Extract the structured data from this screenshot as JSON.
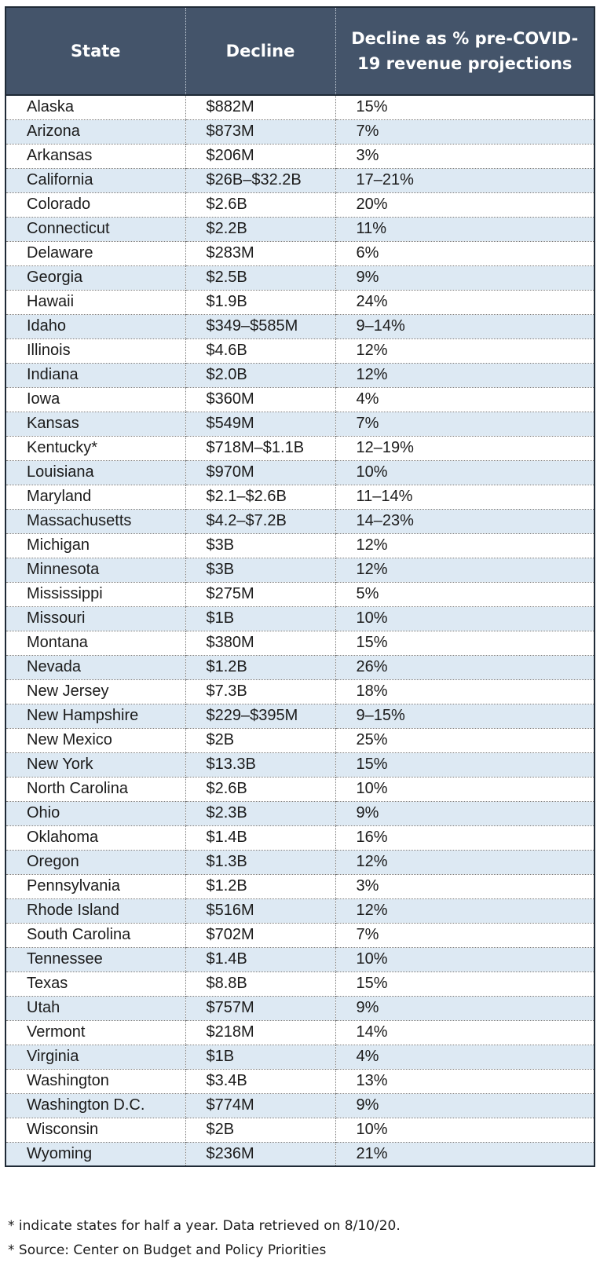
{
  "table": {
    "headers": [
      "State",
      "Decline",
      "Decline as % pre-COVID-19 revenue projections"
    ],
    "rows": [
      [
        "Alaska",
        "$882M",
        "15%"
      ],
      [
        "Arizona",
        "$873M",
        "7%"
      ],
      [
        "Arkansas",
        "$206M",
        "3%"
      ],
      [
        "California",
        "$26B–$32.2B",
        "17–21%"
      ],
      [
        "Colorado",
        "$2.6B",
        "20%"
      ],
      [
        "Connecticut",
        "$2.2B",
        "11%"
      ],
      [
        "Delaware",
        "$283M",
        "6%"
      ],
      [
        "Georgia",
        "$2.5B",
        "9%"
      ],
      [
        "Hawaii",
        "$1.9B",
        "24%"
      ],
      [
        "Idaho",
        "$349–$585M",
        "9–14%"
      ],
      [
        "Illinois",
        "$4.6B",
        "12%"
      ],
      [
        "Indiana",
        "$2.0B",
        "12%"
      ],
      [
        "Iowa",
        "$360M",
        "4%"
      ],
      [
        "Kansas",
        "$549M",
        "7%"
      ],
      [
        "Kentucky*",
        "$718M–$1.1B",
        "12–19%"
      ],
      [
        "Louisiana",
        "$970M",
        "10%"
      ],
      [
        "Maryland",
        "$2.1–$2.6B",
        "11–14%"
      ],
      [
        "Massachusetts",
        "$4.2–$7.2B",
        "14–23%"
      ],
      [
        "Michigan",
        "$3B",
        "12%"
      ],
      [
        "Minnesota",
        "$3B",
        "12%"
      ],
      [
        "Mississippi",
        "$275M",
        "5%"
      ],
      [
        "Missouri",
        "$1B",
        "10%"
      ],
      [
        "Montana",
        "$380M",
        "15%"
      ],
      [
        "Nevada",
        "$1.2B",
        "26%"
      ],
      [
        "New Jersey",
        "$7.3B",
        "18%"
      ],
      [
        "New Hampshire",
        "$229–$395M",
        "9–15%"
      ],
      [
        "New Mexico",
        "$2B",
        "25%"
      ],
      [
        "New York",
        "$13.3B",
        "15%"
      ],
      [
        "North Carolina",
        "$2.6B",
        "10%"
      ],
      [
        "Ohio",
        "$2.3B",
        "9%"
      ],
      [
        "Oklahoma",
        "$1.4B",
        "16%"
      ],
      [
        "Oregon",
        "$1.3B",
        "12%"
      ],
      [
        "Pennsylvania",
        "$1.2B",
        "3%"
      ],
      [
        "Rhode Island",
        "$516M",
        "12%"
      ],
      [
        "South Carolina",
        "$702M",
        "7%"
      ],
      [
        "Tennessee",
        "$1.4B",
        "10%"
      ],
      [
        "Texas",
        "$8.8B",
        "15%"
      ],
      [
        "Utah",
        "$757M",
        "9%"
      ],
      [
        "Vermont",
        "$218M",
        "14%"
      ],
      [
        "Virginia",
        "$1B",
        "4%"
      ],
      [
        "Washington",
        "$3.4B",
        "13%"
      ],
      [
        "Washington D.C.",
        "$774M",
        "9%"
      ],
      [
        "Wisconsin",
        "$2B",
        "10%"
      ],
      [
        "Wyoming",
        "$236M",
        "21%"
      ]
    ]
  },
  "footnotes": [
    "* indicate states for half a year. Data retrieved on 8/10/20.",
    "* Source: Center on Budget and Policy Priorities"
  ],
  "colors": {
    "header_bg": "#44546a",
    "header_text": "#ffffff",
    "stripe_bg": "#dde9f3"
  }
}
